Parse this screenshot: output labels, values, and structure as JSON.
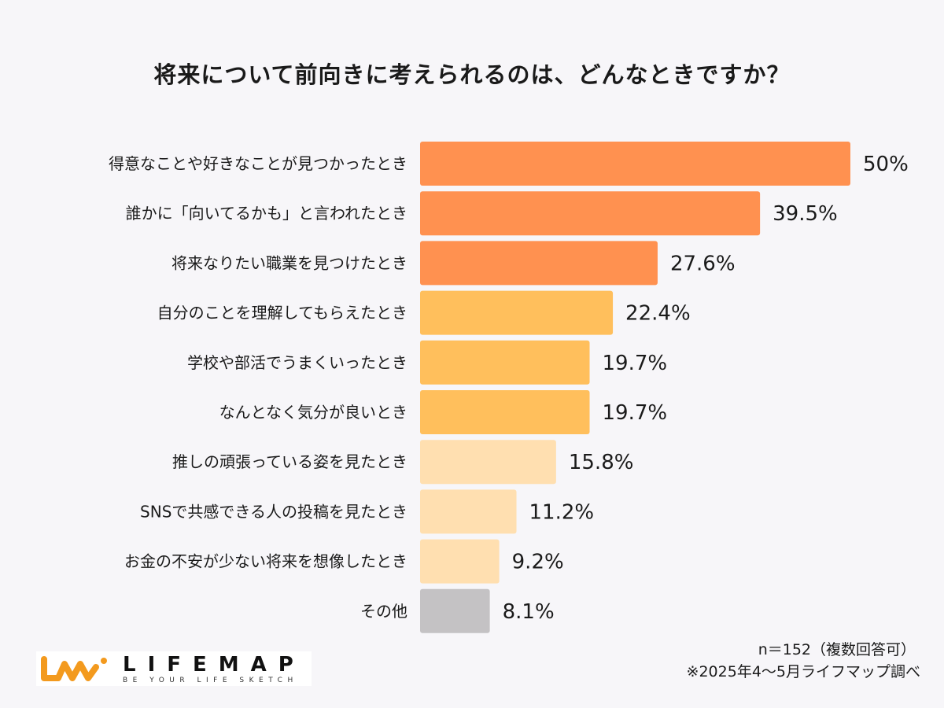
{
  "chart_data": {
    "type": "bar",
    "orientation": "horizontal",
    "title": "将来について前向きに考えられるのは、どんなときですか？",
    "categories": [
      "得意なことや好きなことが見つかったとき",
      "誰かに「向いてるかも」と言われたとき",
      "将来なりたい職業を見つけたとき",
      "自分のことを理解してもらえたとき",
      "学校や部活でうまくいったとき",
      "なんとなく気分が良いとき",
      "推しの頑張っている姿を見たとき",
      "SNSで共感できる人の投稿を見たとき",
      "お金の不安が少ない将来を想像したとき",
      "その他"
    ],
    "values": [
      50,
      39.5,
      27.6,
      22.4,
      19.7,
      19.7,
      15.8,
      11.2,
      9.2,
      8.1
    ],
    "value_labels": [
      "50%",
      "39.5%",
      "27.6%",
      "22.4%",
      "19.7%",
      "19.7%",
      "15.8%",
      "11.2%",
      "9.2%",
      "8.1%"
    ],
    "colors": [
      "#ff9150",
      "#ff9150",
      "#ff9150",
      "#ffbf5c",
      "#ffbf5c",
      "#ffbf5c",
      "#ffdfb0",
      "#ffdfb0",
      "#ffdfb0",
      "#c4c2c4"
    ],
    "xlim": [
      0,
      50
    ],
    "grid": false
  },
  "footer": {
    "sample_note": "n＝152（複数回答可）",
    "source_note": "※2025年4〜5月ライフマップ調べ"
  },
  "logo": {
    "brand": "LIFEMAP",
    "tagline": "BE YOUR LIFE SKETCH",
    "color": "#f39a1e"
  }
}
